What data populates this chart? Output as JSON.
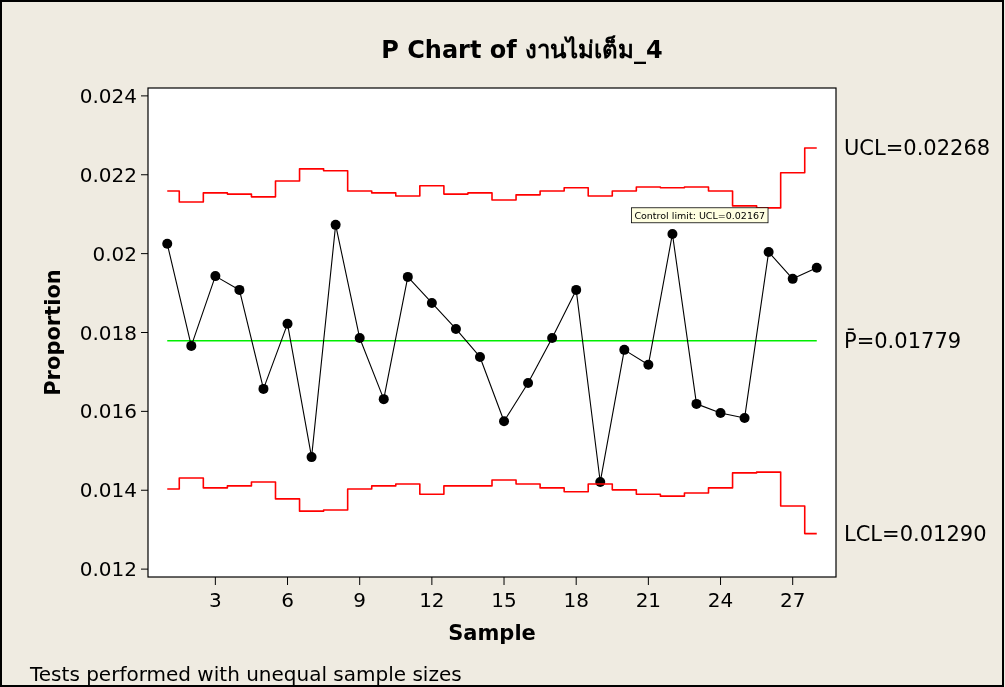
{
  "chart_data": {
    "type": "line",
    "title": "P Chart of งานไม่เต็ม_4",
    "xlabel": "Sample",
    "ylabel": "Proportion",
    "x": [
      1,
      2,
      3,
      4,
      5,
      6,
      7,
      8,
      9,
      10,
      11,
      12,
      13,
      14,
      15,
      16,
      17,
      18,
      19,
      20,
      21,
      22,
      23,
      24,
      25,
      26,
      27,
      28
    ],
    "series": [
      {
        "color": "#000000",
        "marker": "circle",
        "line_style": "solid",
        "values": [
          0.02025,
          0.01766,
          0.01943,
          0.01908,
          0.01657,
          0.01822,
          0.01484,
          0.02073,
          0.01786,
          0.01631,
          0.01941,
          0.01875,
          0.01809,
          0.01738,
          0.01575,
          0.01672,
          0.01786,
          0.01908,
          0.01421,
          0.01756,
          0.01718,
          0.0205,
          0.01619,
          0.01596,
          0.01583,
          0.02004,
          0.01936,
          0.01964
        ]
      },
      {
        "type": "step",
        "name": "UCL=0.02268",
        "color": "#ff0000",
        "marker": "none",
        "values": [
          0.02159,
          0.02131,
          0.02154,
          0.02151,
          0.02144,
          0.02184,
          0.02215,
          0.0221,
          0.02159,
          0.02154,
          0.02146,
          0.02172,
          0.02151,
          0.02154,
          0.02136,
          0.02149,
          0.02159,
          0.02167,
          0.02146,
          0.02159,
          0.02169,
          0.02167,
          0.02169,
          0.02159,
          0.02121,
          0.02116,
          0.02205,
          0.02268
        ]
      },
      {
        "type": "step",
        "name": "LCL=0.01290",
        "color": "#ff0000",
        "marker": "none",
        "values": [
          0.01403,
          0.01431,
          0.01406,
          0.01411,
          0.01421,
          0.01378,
          0.01347,
          0.0135,
          0.01403,
          0.01411,
          0.01416,
          0.0139,
          0.01411,
          0.01411,
          0.01426,
          0.01416,
          0.01406,
          0.01396,
          0.01416,
          0.01401,
          0.0139,
          0.01385,
          0.01393,
          0.01406,
          0.01444,
          0.01446,
          0.0136,
          0.0129
        ]
      }
    ],
    "ref_lines": [
      {
        "axis": "y",
        "value": 0.01779,
        "label": "P̄=0.01779",
        "color": "#00ee00"
      }
    ],
    "annotations": [
      {
        "text": "Control limit:  UCL=0.02167",
        "x": 22,
        "y": 0.02167
      },
      "Tests performed with unequal sample sizes"
    ],
    "xlim": [
      0.2,
      28.8
    ],
    "xticks": [
      3,
      6,
      9,
      12,
      15,
      18,
      21,
      24,
      27
    ],
    "ylim": [
      0.0118,
      0.0242
    ],
    "yticks": [
      0.012,
      0.014,
      0.016,
      0.018,
      0.02,
      0.022,
      0.024
    ],
    "grid": false
  }
}
